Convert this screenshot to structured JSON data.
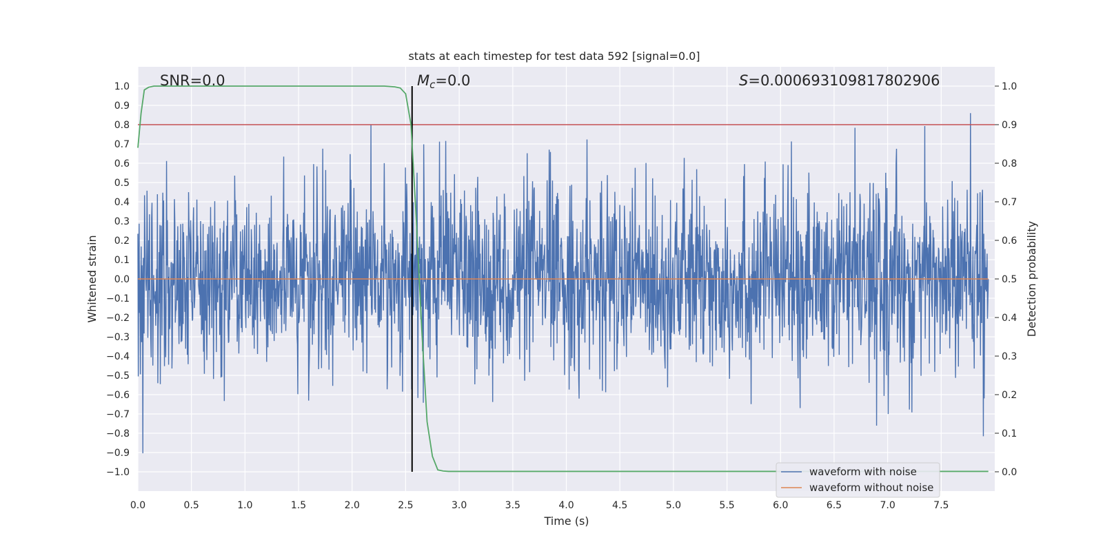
{
  "chart_data": {
    "type": "line",
    "title": "stats at each timestep for test data 592 [signal=0.0]",
    "xlabel": "Time (s)",
    "ylabel": "Whitened strain",
    "y2label": "Detection probability",
    "xlim": [
      0.0,
      8.0
    ],
    "ylim": [
      -1.1,
      1.1
    ],
    "y2lim": [
      -0.05,
      1.05
    ],
    "xticks": [
      "0.0",
      "0.5",
      "1.0",
      "1.5",
      "2.0",
      "2.5",
      "3.0",
      "3.5",
      "4.0",
      "4.5",
      "5.0",
      "5.5",
      "6.0",
      "6.5",
      "7.0",
      "7.5"
    ],
    "yticks": [
      "1.0",
      "0.9",
      "0.8",
      "0.7",
      "0.6",
      "0.5",
      "0.4",
      "0.3",
      "0.2",
      "0.1",
      "0.0",
      "−0.1",
      "−0.2",
      "−0.3",
      "−0.4",
      "−0.5",
      "−0.6",
      "−0.7",
      "−0.8",
      "−0.9",
      "−1.0"
    ],
    "y2ticks": [
      "1.0",
      "0.9",
      "0.8",
      "0.7",
      "0.6",
      "0.5",
      "0.4",
      "0.3",
      "0.2",
      "0.1",
      "0.0"
    ],
    "annotations": {
      "snr": "SNR=0.0",
      "mc_symbol": "M",
      "mc_sub": "c",
      "mc_value": "=0.0",
      "s_symbol": "S",
      "s_value": "=0.000693109817802906"
    },
    "threshold_line": {
      "axis": "right",
      "value": 0.9,
      "color": "#c44e52"
    },
    "marker_line": {
      "x": 2.56,
      "y_range": [
        -1.0,
        1.0
      ],
      "color": "#000000"
    },
    "series": [
      {
        "name": "waveform with noise",
        "axis": "left",
        "color": "#4c72b0",
        "kind": "noise",
        "samples": 2048,
        "envelope_max": 1.0,
        "envelope_min": -1.0
      },
      {
        "name": "waveform without noise",
        "axis": "left",
        "color": "#dd8452",
        "x": [
          0.0,
          7.94
        ],
        "y": [
          0.0,
          0.0
        ]
      },
      {
        "name": "detection probability",
        "axis": "right",
        "color": "#55a868",
        "x": [
          0.0,
          0.03,
          0.06,
          0.1,
          0.15,
          0.2,
          0.3,
          0.5,
          1.0,
          1.5,
          2.0,
          2.3,
          2.4,
          2.45,
          2.5,
          2.55,
          2.6,
          2.65,
          2.7,
          2.75,
          2.8,
          2.85,
          2.9,
          3.0,
          3.5,
          4.0,
          5.0,
          6.0,
          7.0,
          7.94
        ],
        "y": [
          0.84,
          0.93,
          0.99,
          0.997,
          1.0,
          1.0,
          1.0,
          1.0,
          1.0,
          1.0,
          1.0,
          1.0,
          0.998,
          0.995,
          0.98,
          0.9,
          0.65,
          0.37,
          0.13,
          0.04,
          0.005,
          0.002,
          0.001,
          0.001,
          0.001,
          0.001,
          0.001,
          0.001,
          0.001,
          0.001
        ]
      }
    ],
    "legend": {
      "position": "lower-right",
      "entries": [
        "waveform with noise",
        "waveform without noise"
      ]
    }
  }
}
